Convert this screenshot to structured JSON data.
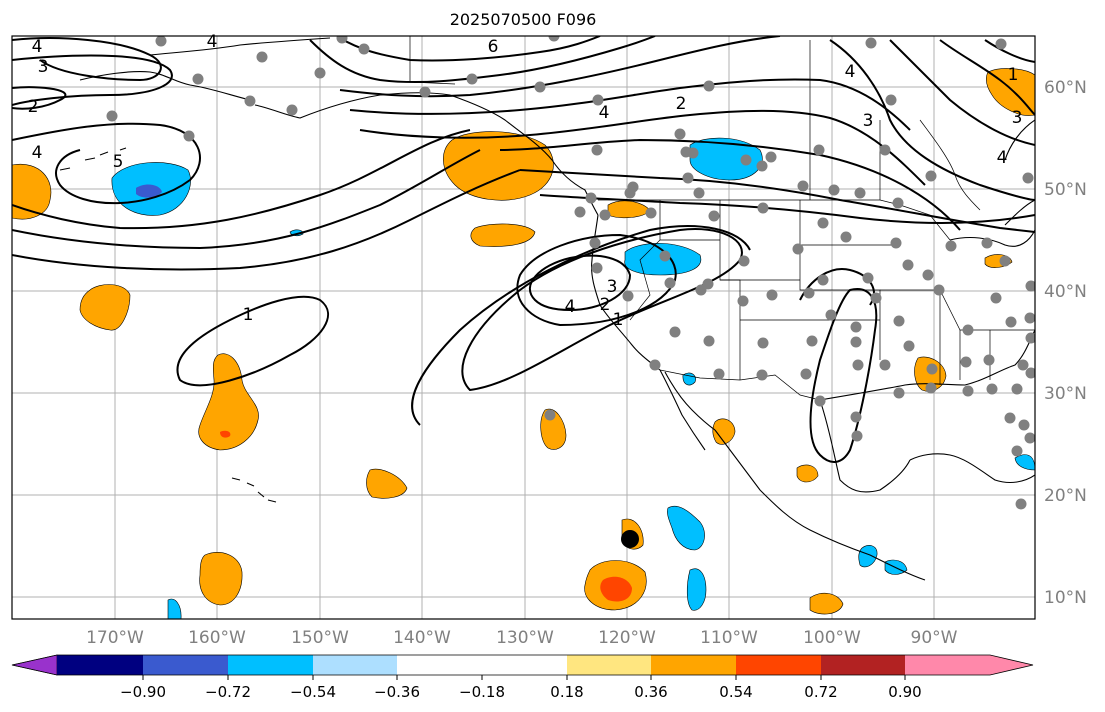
{
  "title": "2025070500 F096",
  "longitude_labels": [
    "170°W",
    "160°W",
    "150°W",
    "140°W",
    "130°W",
    "120°W",
    "110°W",
    "100°W",
    "90°W"
  ],
  "latitude_labels": [
    "60°N",
    "50°N",
    "40°N",
    "30°N",
    "20°N",
    "10°N"
  ],
  "colorbar": {
    "tick_labels": [
      "−0.90",
      "−0.72",
      "−0.54",
      "−0.36",
      "−0.18",
      "0.18",
      "0.36",
      "0.54",
      "0.72",
      "0.90"
    ],
    "colors": [
      "#9932CC",
      "#000080",
      "#3A5ACF",
      "#00BFFF",
      "#ADDFFF",
      "#FFFFFF",
      "#FFE680",
      "#FFA500",
      "#FF4500",
      "#B22222",
      "#FF88AA"
    ]
  },
  "contour_labels": [
    {
      "id": "c-4-nw",
      "text": "4"
    },
    {
      "id": "c-3-nw",
      "text": "3"
    },
    {
      "id": "c-2-nw",
      "text": "2"
    },
    {
      "id": "c-4-w",
      "text": "4"
    },
    {
      "id": "c-5-w",
      "text": "5"
    },
    {
      "id": "c-4-top",
      "text": "4"
    },
    {
      "id": "c-6-top",
      "text": "6"
    },
    {
      "id": "c-4-c",
      "text": "4"
    },
    {
      "id": "c-2-c",
      "text": "2"
    },
    {
      "id": "c-4-ne",
      "text": "4"
    },
    {
      "id": "c-3-ne",
      "text": "3"
    },
    {
      "id": "c-4-e",
      "text": "4"
    },
    {
      "id": "c-1-ne",
      "text": "1"
    },
    {
      "id": "c-3-ne2",
      "text": "3"
    },
    {
      "id": "c-1-pac",
      "text": "1"
    },
    {
      "id": "c-4-cal",
      "text": "4"
    },
    {
      "id": "c-3-cal",
      "text": "3"
    },
    {
      "id": "c-2-cal",
      "text": "2"
    },
    {
      "id": "c-1-cal",
      "text": "1"
    }
  ],
  "colors": {
    "positive_fill": "#FFA500",
    "strong_positive_fill": "#FF4500",
    "negative_fill": "#00BFFF",
    "strong_negative_fill": "#3A5ACF",
    "station_marker": "#808080",
    "grid": "#b0b0b0",
    "axis_label": "#808080"
  }
}
